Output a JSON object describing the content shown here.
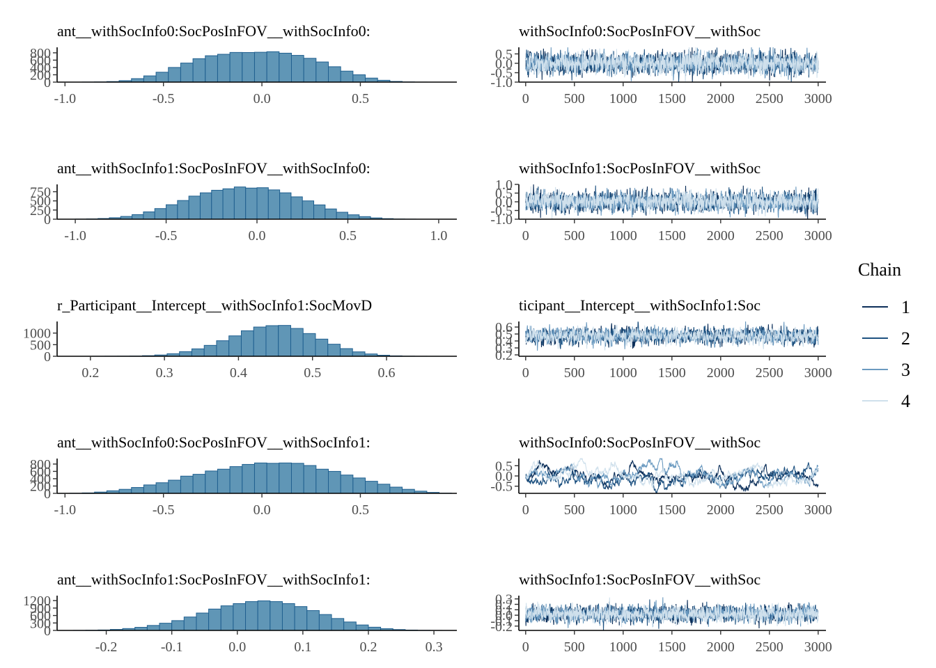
{
  "chart_data": {
    "layout": "grid of 5 rows x 2 columns: histogram (left) and trace plot (right) per parameter",
    "legend": {
      "title": "Chain",
      "position": "right",
      "entries": [
        {
          "label": "1",
          "color": "#0b2e59"
        },
        {
          "label": "2",
          "color": "#1d5180"
        },
        {
          "label": "3",
          "color": "#6b9ac0"
        },
        {
          "label": "4",
          "color": "#cfe0ec"
        }
      ]
    },
    "histogram_style": {
      "fill": "#6096b6",
      "stroke": "#1f5f8f"
    },
    "panels": [
      {
        "hist": {
          "type": "bar",
          "title": "ant__withSocInfo0:SocPosInFOV__withSocInfo0:",
          "xlim": [
            -1.04,
            0.99
          ],
          "xticks": [
            -1.0,
            -0.5,
            0.0,
            0.5
          ],
          "xtick_labels": [
            "-1.0",
            "-0.5",
            "0.0",
            "0.5"
          ],
          "ylim": [
            0,
            950
          ],
          "yticks": [
            0,
            200,
            400,
            600,
            800
          ],
          "ytick_labels": [
            "0",
            "200",
            "400",
            "600",
            "800"
          ],
          "bin_start": -0.975,
          "bin_width": 0.0625,
          "values": [
            0,
            2,
            5,
            15,
            40,
            95,
            170,
            270,
            400,
            520,
            640,
            720,
            760,
            810,
            808,
            815,
            830,
            790,
            730,
            650,
            550,
            420,
            300,
            200,
            110,
            50,
            18,
            5,
            1,
            0,
            0
          ]
        },
        "trace": {
          "type": "line",
          "title": "withSocInfo0:SocPosInFOV__withSoc",
          "xlim": [
            -70,
            3080
          ],
          "xticks": [
            0,
            500,
            1000,
            1500,
            2000,
            2500,
            3000
          ],
          "xtick_labels": [
            "0",
            "500",
            "1000",
            "1500",
            "2000",
            "2500",
            "3000"
          ],
          "ylim": [
            -1.0,
            0.85
          ],
          "yticks": [
            -1.0,
            -0.5,
            0.0,
            0.5
          ],
          "ytick_labels": [
            "-1.0",
            "-0.5",
            "0.0",
            "0.5"
          ],
          "mean": 0.0,
          "sd": 0.3,
          "autocorrelation": 0.0,
          "iterations": 3000
        }
      },
      {
        "hist": {
          "type": "bar",
          "title": "ant__withSocInfo1:SocPosInFOV__withSocInfo0:",
          "xlim": [
            -1.1,
            1.1
          ],
          "xticks": [
            -1.0,
            -0.5,
            0.0,
            0.5,
            1.0
          ],
          "xtick_labels": [
            "-1.0",
            "-0.5",
            "0.0",
            "0.5",
            "1.0"
          ],
          "ylim": [
            0,
            950
          ],
          "yticks": [
            0,
            250,
            500,
            750
          ],
          "ytick_labels": [
            "0",
            "250",
            "500",
            "750"
          ],
          "bin_start": -1.0,
          "bin_width": 0.0625,
          "values": [
            3,
            8,
            18,
            40,
            75,
            125,
            200,
            290,
            395,
            510,
            630,
            720,
            790,
            830,
            880,
            850,
            860,
            800,
            720,
            610,
            500,
            390,
            280,
            190,
            120,
            70,
            35,
            15,
            5,
            2,
            0,
            0
          ]
        },
        "trace": {
          "type": "line",
          "title": "withSocInfo1:SocPosInFOV__withSoc",
          "xlim": [
            -70,
            3080
          ],
          "xticks": [
            0,
            500,
            1000,
            1500,
            2000,
            2500,
            3000
          ],
          "xtick_labels": [
            "0",
            "500",
            "1000",
            "1500",
            "2000",
            "2500",
            "3000"
          ],
          "ylim": [
            -1.0,
            1.0
          ],
          "yticks": [
            -1.0,
            -0.5,
            0.0,
            0.5,
            1.0
          ],
          "ytick_labels": [
            "-1.0",
            "-0.5",
            "0.0",
            "0.5",
            "1.0"
          ],
          "mean": 0.0,
          "sd": 0.3,
          "autocorrelation": 0.0,
          "iterations": 3000
        }
      },
      {
        "hist": {
          "type": "bar",
          "title": "r_Participant__Intercept__withSocInfo1:SocMovD",
          "xlim": [
            0.155,
            0.695
          ],
          "xticks": [
            0.2,
            0.3,
            0.4,
            0.5,
            0.6
          ],
          "xtick_labels": [
            "0.2",
            "0.3",
            "0.4",
            "0.5",
            "0.6"
          ],
          "ylim": [
            0,
            1500
          ],
          "yticks": [
            0,
            500,
            1000
          ],
          "ytick_labels": [
            "0",
            "500",
            "1000"
          ],
          "bin_start": 0.17,
          "bin_width": 0.0167,
          "values": [
            0,
            1,
            2,
            4,
            6,
            10,
            25,
            55,
            110,
            200,
            320,
            470,
            670,
            880,
            1100,
            1260,
            1320,
            1330,
            1200,
            980,
            740,
            520,
            330,
            190,
            100,
            45,
            18,
            6,
            2,
            1
          ]
        },
        "trace": {
          "type": "line",
          "title": "ticipant__Intercept__withSocInfo1:Soc",
          "xlim": [
            -70,
            3080
          ],
          "xticks": [
            0,
            500,
            1000,
            1500,
            2000,
            2500,
            3000
          ],
          "xtick_labels": [
            "0",
            "500",
            "1000",
            "1500",
            "2000",
            "2500",
            "3000"
          ],
          "ylim": [
            0.18,
            0.68
          ],
          "yticks": [
            0.2,
            0.3,
            0.4,
            0.5,
            0.6
          ],
          "ytick_labels": [
            "0.2",
            "0.3",
            "0.4",
            "0.5",
            "0.6"
          ],
          "mean": 0.47,
          "sd": 0.06,
          "autocorrelation": 0.3,
          "iterations": 3000
        }
      },
      {
        "hist": {
          "type": "bar",
          "title": "ant__withSocInfo0:SocPosInFOV__withSocInfo1:",
          "xlim": [
            -1.04,
            0.99
          ],
          "xticks": [
            -1.0,
            -0.5,
            0.0,
            0.5
          ],
          "xtick_labels": [
            "-1.0",
            "-0.5",
            "0.0",
            "0.5"
          ],
          "ylim": [
            0,
            950
          ],
          "yticks": [
            0,
            200,
            400,
            600,
            800
          ],
          "ytick_labels": [
            "0",
            "200",
            "400",
            "600",
            "800"
          ],
          "bin_start": -0.975,
          "bin_width": 0.0625,
          "values": [
            3,
            12,
            35,
            70,
            110,
            160,
            230,
            290,
            360,
            470,
            520,
            610,
            660,
            730,
            790,
            830,
            820,
            830,
            820,
            760,
            660,
            600,
            500,
            420,
            330,
            250,
            170,
            110,
            60,
            25,
            5
          ]
        },
        "trace": {
          "type": "line",
          "title": "withSocInfo0:SocPosInFOV__withSoc",
          "xlim": [
            -70,
            3080
          ],
          "xticks": [
            0,
            500,
            1000,
            1500,
            2000,
            2500,
            3000
          ],
          "xtick_labels": [
            "0",
            "500",
            "1000",
            "1500",
            "2000",
            "2500",
            "3000"
          ],
          "ylim": [
            -0.85,
            0.85
          ],
          "yticks": [
            -0.5,
            0.0,
            0.5
          ],
          "ytick_labels": [
            "-0.5",
            "0.0",
            "0.5"
          ],
          "mean": 0.0,
          "sd": 0.3,
          "autocorrelation": 0.97,
          "iterations": 3000
        }
      },
      {
        "hist": {
          "type": "bar",
          "title": "ant__withSocInfo1:SocPosInFOV__withSocInfo1:",
          "xlim": [
            -0.275,
            0.335
          ],
          "xticks": [
            -0.2,
            -0.1,
            0.0,
            0.1,
            0.2,
            0.3
          ],
          "xtick_labels": [
            "-0.2",
            "-0.1",
            "0.0",
            "0.1",
            "0.2",
            "0.3"
          ],
          "ylim": [
            0,
            1400
          ],
          "yticks": [
            0,
            300,
            600,
            900,
            1200
          ],
          "ytick_labels": [
            "0",
            "300",
            "600",
            "900",
            "1200"
          ],
          "bin_start": -0.25,
          "bin_width": 0.01875,
          "values": [
            3,
            8,
            18,
            40,
            75,
            125,
            200,
            290,
            395,
            540,
            700,
            860,
            990,
            1080,
            1160,
            1190,
            1160,
            1080,
            960,
            800,
            640,
            480,
            340,
            220,
            130,
            70,
            35,
            15,
            6,
            2,
            0,
            0
          ]
        },
        "trace": {
          "type": "line",
          "title": "withSocInfo1:SocPosInFOV__withSoc",
          "xlim": [
            -70,
            3080
          ],
          "xticks": [
            0,
            500,
            1000,
            1500,
            2000,
            2500,
            3000
          ],
          "xtick_labels": [
            "0",
            "500",
            "1000",
            "1500",
            "2000",
            "2500",
            "3000"
          ],
          "ylim": [
            -0.28,
            0.36
          ],
          "yticks": [
            -0.2,
            -0.1,
            0.0,
            0.1,
            0.2,
            0.3
          ],
          "ytick_labels": [
            "-0.2",
            "-0.1",
            "0.0",
            "0.1",
            "0.2",
            "0.3"
          ],
          "mean": 0.02,
          "sd": 0.08,
          "autocorrelation": 0.0,
          "iterations": 3000
        }
      }
    ]
  }
}
